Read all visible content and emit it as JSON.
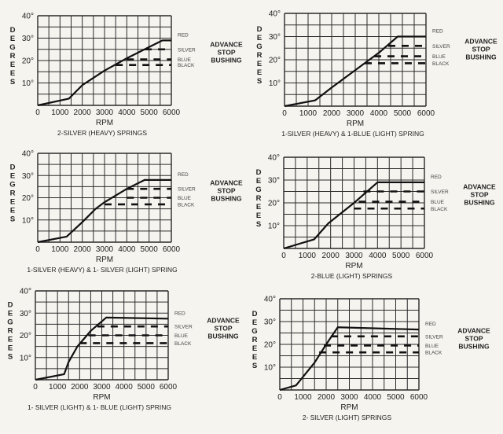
{
  "chart_data": [
    {
      "type": "line",
      "title": "2-SILVER (HEAVY) SPRINGS",
      "xlabel": "RPM",
      "ylabel": "DEGREES",
      "xlim": [
        0,
        6000
      ],
      "ylim": [
        0,
        40
      ],
      "xticks": [
        "0",
        "1000",
        "2000",
        "3000",
        "4000",
        "5000",
        "6000"
      ],
      "yticks": [
        "10°",
        "20°",
        "30°",
        "40°"
      ],
      "grid": true,
      "series": [
        {
          "name": "RED",
          "style": "solid",
          "x": [
            0,
            1400,
            2000,
            3000,
            4000,
            5000,
            5600,
            6000
          ],
          "y": [
            0,
            3,
            9,
            15.5,
            21,
            26,
            29,
            29
          ]
        },
        {
          "name": "SILVER",
          "style": "dashed",
          "x": [
            4800,
            6000
          ],
          "y": [
            25,
            25
          ]
        },
        {
          "name": "BLUE",
          "style": "dashed",
          "x": [
            4000,
            6000
          ],
          "y": [
            20.5,
            20.5
          ]
        },
        {
          "name": "BLACK",
          "style": "dashed",
          "x": [
            3500,
            6000
          ],
          "y": [
            18,
            18
          ]
        }
      ],
      "annotation": [
        "ADVANCE",
        "STOP",
        "BUSHING"
      ]
    },
    {
      "type": "line",
      "title": "1-SILVER (HEAVY) & 1-BLUE (LIGHT) SPRING",
      "xlabel": "RPM",
      "ylabel": "DEGREES",
      "xlim": [
        0,
        6000
      ],
      "ylim": [
        0,
        40
      ],
      "xticks": [
        "0",
        "1000",
        "2000",
        "3000",
        "4000",
        "5000",
        "6000"
      ],
      "yticks": [
        "10°",
        "20°",
        "30°",
        "40°"
      ],
      "grid": true,
      "series": [
        {
          "name": "RED",
          "style": "solid",
          "x": [
            0,
            1300,
            2000,
            3000,
            4000,
            4800,
            6000
          ],
          "y": [
            0,
            2.5,
            8,
            15.5,
            23,
            30,
            30
          ]
        },
        {
          "name": "SILVER",
          "style": "dashed",
          "x": [
            4400,
            6000
          ],
          "y": [
            26,
            26
          ]
        },
        {
          "name": "BLUE",
          "style": "dashed",
          "x": [
            3800,
            6000
          ],
          "y": [
            21.5,
            21.5
          ]
        },
        {
          "name": "BLACK",
          "style": "dashed",
          "x": [
            3400,
            6000
          ],
          "y": [
            18.5,
            18.5
          ]
        }
      ],
      "annotation": [
        "ADVANCE",
        "STOP",
        "BUSHING"
      ]
    },
    {
      "type": "line",
      "title": "1-SILVER (HEAVY) & 1- SILVER (LIGHT) SPRING",
      "xlabel": "RPM",
      "ylabel": "DEGREES",
      "xlim": [
        0,
        6000
      ],
      "ylim": [
        0,
        40
      ],
      "xticks": [
        "0",
        "1000",
        "2000",
        "3000",
        "4000",
        "5000",
        "6000"
      ],
      "yticks": [
        "10°",
        "20°",
        "30°",
        "40°"
      ],
      "grid": true,
      "series": [
        {
          "name": "RED",
          "style": "solid",
          "x": [
            0,
            1300,
            2000,
            2600,
            3000,
            4000,
            4800,
            6000
          ],
          "y": [
            0,
            2.5,
            9,
            15,
            18,
            24,
            28,
            28
          ]
        },
        {
          "name": "SILVER",
          "style": "dashed",
          "x": [
            4000,
            6000
          ],
          "y": [
            24,
            24
          ]
        },
        {
          "name": "BLUE",
          "style": "dashed",
          "x": [
            4000,
            6000
          ],
          "y": [
            20,
            20
          ]
        },
        {
          "name": "BLACK",
          "style": "dashed",
          "x": [
            3000,
            6000
          ],
          "y": [
            17,
            17
          ]
        }
      ],
      "annotation": [
        "ADVANCE",
        "STOP",
        "BUSHING"
      ]
    },
    {
      "type": "line",
      "title": "2-BLUE (LIGHT) SPRINGS",
      "xlabel": "RPM",
      "ylabel": "DEGREES",
      "xlim": [
        0,
        6000
      ],
      "ylim": [
        0,
        40
      ],
      "xticks": [
        "0",
        "1000",
        "2000",
        "3000",
        "4000",
        "5000",
        "6000"
      ],
      "yticks": [
        "10°",
        "20°",
        "30°",
        "40°"
      ],
      "grid": true,
      "series": [
        {
          "name": "RED",
          "style": "solid",
          "x": [
            0,
            1300,
            1900,
            3000,
            4000,
            6000
          ],
          "y": [
            0,
            4,
            11,
            20,
            29,
            29
          ]
        },
        {
          "name": "SILVER",
          "style": "dashed",
          "x": [
            3400,
            6000
          ],
          "y": [
            25,
            25
          ]
        },
        {
          "name": "BLUE",
          "style": "dashed",
          "x": [
            3200,
            6000
          ],
          "y": [
            20.5,
            20.5
          ]
        },
        {
          "name": "BLACK",
          "style": "dashed",
          "x": [
            3000,
            6000
          ],
          "y": [
            17.5,
            17.5
          ]
        }
      ],
      "annotation": [
        "ADVANCE",
        "STOP",
        "BUSHING"
      ]
    },
    {
      "type": "line",
      "title": "1- SILVER (LIGHT) & 1- BLUE (LIGHT) SPRING",
      "xlabel": "RPM",
      "ylabel": "DEGREES",
      "xlim": [
        0,
        6000
      ],
      "ylim": [
        0,
        40
      ],
      "xticks": [
        "0",
        "1000",
        "2000",
        "3000",
        "4000",
        "5000",
        "6000"
      ],
      "yticks": [
        "10°",
        "20°",
        "30°",
        "40°"
      ],
      "grid": true,
      "series": [
        {
          "name": "RED",
          "style": "solid",
          "x": [
            0,
            1300,
            1500,
            1900,
            2500,
            3200,
            6000
          ],
          "y": [
            0,
            2.5,
            8,
            15,
            22,
            28,
            27.5
          ]
        },
        {
          "name": "SILVER",
          "style": "dashed",
          "x": [
            2800,
            6000
          ],
          "y": [
            24,
            24
          ]
        },
        {
          "name": "BLUE",
          "style": "dashed",
          "x": [
            2400,
            6000
          ],
          "y": [
            20,
            20
          ]
        },
        {
          "name": "BLACK",
          "style": "dashed",
          "x": [
            2000,
            6000
          ],
          "y": [
            16.5,
            16.5
          ]
        }
      ],
      "annotation": [
        "ADVANCE",
        "STOP",
        "BUSHING"
      ]
    },
    {
      "type": "line",
      "title": "2- SILVER (LIGHT) SPRINGS",
      "xlabel": "RPM",
      "ylabel": "DEGREES",
      "xlim": [
        0,
        6000
      ],
      "ylim": [
        0,
        40
      ],
      "xticks": [
        "0",
        "1000",
        "2000",
        "3000",
        "4000",
        "5000",
        "6000"
      ],
      "yticks": [
        "10°",
        "20°",
        "30°",
        "40°"
      ],
      "grid": true,
      "series": [
        {
          "name": "RED",
          "style": "solid",
          "x": [
            0,
            700,
            1500,
            2000,
            2500,
            6000
          ],
          "y": [
            0,
            2,
            12,
            20,
            27.5,
            26.5
          ]
        },
        {
          "name": "SILVER",
          "style": "dashed",
          "x": [
            2200,
            6000
          ],
          "y": [
            23.5,
            23.5
          ]
        },
        {
          "name": "BLUE",
          "style": "dashed",
          "x": [
            1900,
            6000
          ],
          "y": [
            19.5,
            19.5
          ]
        },
        {
          "name": "BLACK",
          "style": "dashed",
          "x": [
            1700,
            6000
          ],
          "y": [
            16.5,
            16.5
          ]
        }
      ],
      "annotation": [
        "ADVANCE",
        "STOP",
        "BUSHING"
      ]
    }
  ]
}
